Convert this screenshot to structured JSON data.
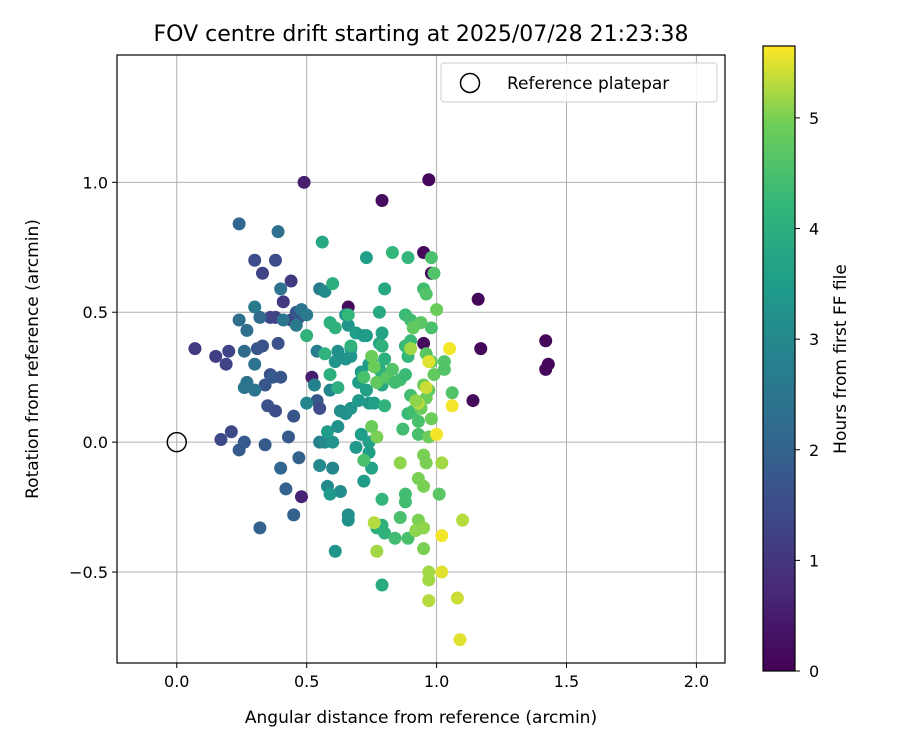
{
  "chart_data": {
    "type": "scatter",
    "title": "FOV centre drift starting at 2025/07/28 21:23:38",
    "xlabel": "Angular distance from reference (arcmin)",
    "ylabel": "Rotation from reference (arcmin)",
    "xlim": [
      -0.23,
      2.11
    ],
    "ylim": [
      -0.85,
      1.49
    ],
    "x_ticks": [
      0.0,
      0.5,
      1.0,
      1.5,
      2.0
    ],
    "x_tick_labels": [
      "0.0",
      "0.5",
      "1.0",
      "1.5",
      "2.0"
    ],
    "y_ticks": [
      -0.5,
      0.0,
      0.5,
      1.0
    ],
    "y_tick_labels": [
      "−0.5",
      "0.0",
      "0.5",
      "1.0"
    ],
    "grid": true,
    "legend": {
      "placement": "top-right",
      "entries": [
        "Reference platepar"
      ]
    },
    "reference_point": {
      "x": 0.0,
      "y": 0.0,
      "name": "Reference platepar"
    },
    "colorbar": {
      "label": "Hours from first FF file",
      "range": [
        0,
        5.65
      ],
      "ticks": [
        0,
        1,
        2,
        3,
        4,
        5
      ],
      "tick_labels": [
        "0",
        "1",
        "2",
        "3",
        "4",
        "5"
      ],
      "colormap": "viridis"
    },
    "points": [
      [
        0.49,
        1.0,
        0.5
      ],
      [
        0.97,
        1.01,
        0.1
      ],
      [
        0.79,
        0.93,
        0.2
      ],
      [
        0.95,
        0.73,
        0.1
      ],
      [
        0.98,
        0.65,
        0.1
      ],
      [
        1.16,
        0.55,
        0.1
      ],
      [
        0.66,
        0.52,
        0.2
      ],
      [
        1.42,
        0.39,
        0.1
      ],
      [
        1.43,
        0.3,
        0.1
      ],
      [
        1.42,
        0.28,
        0.1
      ],
      [
        1.17,
        0.36,
        0.1
      ],
      [
        0.95,
        0.38,
        0.2
      ],
      [
        1.14,
        0.16,
        0.2
      ],
      [
        0.52,
        0.25,
        0.5
      ],
      [
        0.48,
        -0.21,
        0.6
      ],
      [
        0.07,
        0.36,
        1.1
      ],
      [
        0.15,
        0.33,
        1.2
      ],
      [
        0.2,
        0.35,
        1.3
      ],
      [
        0.19,
        0.3,
        1.3
      ],
      [
        0.17,
        0.01,
        1.4
      ],
      [
        0.21,
        0.04,
        1.4
      ],
      [
        0.44,
        0.62,
        1.1
      ],
      [
        0.41,
        0.54,
        1.0
      ],
      [
        0.38,
        0.48,
        1.2
      ],
      [
        0.33,
        0.65,
        1.3
      ],
      [
        0.3,
        0.7,
        1.5
      ],
      [
        0.38,
        0.7,
        1.5
      ],
      [
        0.36,
        0.48,
        1.3
      ],
      [
        0.44,
        0.47,
        1.3
      ],
      [
        0.47,
        0.48,
        1.6
      ],
      [
        0.46,
        0.5,
        1.7
      ],
      [
        0.39,
        0.38,
        1.6
      ],
      [
        0.33,
        0.37,
        1.6
      ],
      [
        0.31,
        0.36,
        1.7
      ],
      [
        0.36,
        0.26,
        1.6
      ],
      [
        0.34,
        0.22,
        1.7
      ],
      [
        0.37,
        0.25,
        1.8
      ],
      [
        0.4,
        0.25,
        1.7
      ],
      [
        0.35,
        0.14,
        1.6
      ],
      [
        0.38,
        0.12,
        1.5
      ],
      [
        0.45,
        0.1,
        1.7
      ],
      [
        0.54,
        0.16,
        1.7
      ],
      [
        0.55,
        0.13,
        1.5
      ],
      [
        0.34,
        -0.01,
        1.8
      ],
      [
        0.24,
        -0.03,
        1.8
      ],
      [
        0.26,
        0.0,
        1.8
      ],
      [
        0.43,
        0.02,
        1.8
      ],
      [
        0.47,
        -0.06,
        2.0
      ],
      [
        0.32,
        -0.33,
        2.0
      ],
      [
        0.45,
        -0.28,
        2.0
      ],
      [
        0.42,
        -0.18,
        2.0
      ],
      [
        0.4,
        -0.1,
        2.1
      ],
      [
        0.24,
        0.84,
        2.1
      ],
      [
        0.39,
        0.81,
        2.3
      ],
      [
        0.4,
        0.59,
        2.4
      ],
      [
        0.32,
        0.48,
        2.2
      ],
      [
        0.24,
        0.47,
        2.3
      ],
      [
        0.27,
        0.43,
        2.3
      ],
      [
        0.26,
        0.35,
        2.2
      ],
      [
        0.3,
        0.3,
        2.4
      ],
      [
        0.27,
        0.23,
        2.4
      ],
      [
        0.26,
        0.21,
        2.5
      ],
      [
        0.3,
        0.2,
        2.5
      ],
      [
        0.3,
        0.52,
        2.6
      ],
      [
        0.41,
        0.47,
        2.5
      ],
      [
        0.48,
        0.51,
        2.5
      ],
      [
        0.5,
        0.49,
        2.6
      ],
      [
        0.46,
        0.45,
        2.6
      ],
      [
        0.55,
        0.59,
        2.6
      ],
      [
        0.57,
        0.58,
        3.0
      ],
      [
        0.54,
        0.35,
        2.7
      ],
      [
        0.53,
        0.22,
        2.8
      ],
      [
        0.59,
        0.2,
        2.9
      ],
      [
        0.5,
        0.15,
        2.9
      ],
      [
        0.55,
        0.0,
        2.8
      ],
      [
        0.57,
        0.0,
        3.0
      ],
      [
        0.55,
        -0.09,
        3.0
      ],
      [
        0.6,
        -0.1,
        2.9
      ],
      [
        0.58,
        -0.17,
        3.0
      ],
      [
        0.63,
        -0.19,
        3.1
      ],
      [
        0.66,
        -0.28,
        3.1
      ],
      [
        0.66,
        -0.3,
        3.2
      ],
      [
        0.61,
        -0.42,
        3.3
      ],
      [
        0.59,
        -0.2,
        3.4
      ],
      [
        0.6,
        0.0,
        3.3
      ],
      [
        0.58,
        0.04,
        3.5
      ],
      [
        0.62,
        0.06,
        3.2
      ],
      [
        0.63,
        0.12,
        3.1
      ],
      [
        0.65,
        0.11,
        3.2
      ],
      [
        0.67,
        0.13,
        3.3
      ],
      [
        0.7,
        0.16,
        3.4
      ],
      [
        0.61,
        0.31,
        3.3
      ],
      [
        0.62,
        0.35,
        3.2
      ],
      [
        0.65,
        0.32,
        3.3
      ],
      [
        0.67,
        0.36,
        3.4
      ],
      [
        0.67,
        0.33,
        3.3
      ],
      [
        0.66,
        0.45,
        3.3
      ],
      [
        0.65,
        0.49,
        3.3
      ],
      [
        0.69,
        0.42,
        3.5
      ],
      [
        0.72,
        0.41,
        3.3
      ],
      [
        0.73,
        0.41,
        3.5
      ],
      [
        0.74,
        0.3,
        3.4
      ],
      [
        0.75,
        0.31,
        3.6
      ],
      [
        0.7,
        0.23,
        3.5
      ],
      [
        0.71,
        0.27,
        3.5
      ],
      [
        0.73,
        0.2,
        3.6
      ],
      [
        0.74,
        0.15,
        3.4
      ],
      [
        0.76,
        0.15,
        3.6
      ],
      [
        0.71,
        0.03,
        3.5
      ],
      [
        0.72,
        -0.15,
        3.5
      ],
      [
        0.74,
        0.0,
        3.6
      ],
      [
        0.69,
        -0.02,
        3.4
      ],
      [
        0.75,
        -0.1,
        3.7
      ],
      [
        0.74,
        -0.04,
        3.6
      ],
      [
        0.73,
        0.71,
        3.6
      ],
      [
        0.8,
        0.59,
        3.8
      ],
      [
        0.78,
        0.5,
        3.8
      ],
      [
        0.79,
        0.42,
        3.7
      ],
      [
        0.78,
        0.38,
        3.7
      ],
      [
        0.77,
        0.23,
        3.7
      ],
      [
        0.79,
        0.22,
        3.8
      ],
      [
        0.78,
        0.28,
        3.8
      ],
      [
        0.56,
        0.77,
        3.8
      ],
      [
        0.6,
        0.61,
        4.0
      ],
      [
        0.59,
        0.46,
        4.0
      ],
      [
        0.61,
        0.44,
        4.1
      ],
      [
        0.59,
        0.26,
        4.0
      ],
      [
        0.57,
        0.34,
        4.1
      ],
      [
        0.5,
        0.41,
        4.1
      ],
      [
        0.62,
        0.21,
        4.0
      ],
      [
        0.79,
        0.37,
        4.1
      ],
      [
        0.8,
        0.32,
        4.0
      ],
      [
        0.79,
        0.26,
        4.1
      ],
      [
        0.8,
        0.14,
        4.1
      ],
      [
        0.79,
        -0.32,
        4.0
      ],
      [
        0.77,
        -0.33,
        4.0
      ],
      [
        0.79,
        -0.55,
        3.9
      ],
      [
        0.8,
        -0.35,
        4.1
      ],
      [
        0.79,
        -0.22,
        4.2
      ],
      [
        0.83,
        0.73,
        4.2
      ],
      [
        0.89,
        0.71,
        4.2
      ],
      [
        0.88,
        0.49,
        4.3
      ],
      [
        0.9,
        0.47,
        4.4
      ],
      [
        0.9,
        0.39,
        4.3
      ],
      [
        0.88,
        0.37,
        4.3
      ],
      [
        0.89,
        0.33,
        4.2
      ],
      [
        0.86,
        0.24,
        4.4
      ],
      [
        0.88,
        0.26,
        4.3
      ],
      [
        0.9,
        0.18,
        4.4
      ],
      [
        0.89,
        0.11,
        4.3
      ],
      [
        0.91,
        0.12,
        4.4
      ],
      [
        0.87,
        0.05,
        4.4
      ],
      [
        0.93,
        0.08,
        4.5
      ],
      [
        0.93,
        0.03,
        4.5
      ],
      [
        0.88,
        -0.2,
        4.4
      ],
      [
        0.88,
        -0.23,
        4.4
      ],
      [
        0.86,
        -0.29,
        4.5
      ],
      [
        0.84,
        -0.37,
        4.4
      ],
      [
        0.89,
        -0.37,
        4.5
      ],
      [
        0.95,
        0.59,
        4.4
      ],
      [
        0.98,
        0.71,
        4.5
      ],
      [
        0.99,
        0.65,
        4.6
      ],
      [
        0.96,
        0.57,
        4.6
      ],
      [
        0.94,
        0.46,
        4.7
      ],
      [
        0.91,
        0.44,
        4.8
      ],
      [
        0.98,
        0.44,
        4.5
      ],
      [
        0.96,
        0.34,
        4.7
      ],
      [
        0.98,
        0.31,
        4.8
      ],
      [
        0.99,
        0.26,
        4.8
      ],
      [
        0.97,
        0.2,
        4.8
      ],
      [
        0.96,
        0.17,
        4.9
      ],
      [
        0.95,
        0.22,
        4.9
      ],
      [
        0.94,
        0.13,
        4.9
      ],
      [
        0.98,
        0.09,
        4.9
      ],
      [
        0.97,
        0.02,
        4.9
      ],
      [
        0.95,
        -0.05,
        5.0
      ],
      [
        0.96,
        -0.08,
        5.0
      ],
      [
        0.93,
        -0.14,
        5.0
      ],
      [
        0.95,
        -0.17,
        5.0
      ],
      [
        1.01,
        -0.2,
        4.7
      ],
      [
        1.06,
        0.19,
        4.6
      ],
      [
        1.03,
        0.28,
        4.6
      ],
      [
        1.03,
        0.31,
        4.6
      ],
      [
        1.0,
        0.51,
        4.9
      ],
      [
        0.86,
        -0.08,
        5.1
      ],
      [
        0.93,
        -0.3,
        5.0
      ],
      [
        0.92,
        -0.34,
        5.1
      ],
      [
        0.95,
        -0.33,
        5.1
      ],
      [
        0.95,
        -0.41,
        5.0
      ],
      [
        0.97,
        -0.5,
        5.2
      ],
      [
        0.97,
        -0.53,
        5.2
      ],
      [
        0.97,
        -0.61,
        5.3
      ],
      [
        0.77,
        -0.42,
        5.2
      ],
      [
        0.76,
        -0.31,
        5.3
      ],
      [
        1.02,
        -0.08,
        5.2
      ],
      [
        1.1,
        -0.3,
        5.3
      ],
      [
        1.08,
        -0.6,
        5.4
      ],
      [
        1.02,
        -0.5,
        5.5
      ],
      [
        1.02,
        -0.36,
        5.6
      ],
      [
        1.09,
        -0.76,
        5.5
      ],
      [
        1.0,
        0.03,
        5.6
      ],
      [
        1.06,
        0.14,
        5.6
      ],
      [
        1.05,
        0.36,
        5.6
      ],
      [
        0.97,
        0.31,
        5.5
      ],
      [
        0.96,
        0.21,
        5.4
      ],
      [
        0.93,
        0.15,
        5.3
      ],
      [
        0.9,
        0.36,
        5.2
      ],
      [
        0.92,
        0.16,
        5.1
      ],
      [
        0.77,
        0.23,
        4.8
      ],
      [
        0.81,
        0.25,
        4.7
      ],
      [
        0.76,
        0.29,
        4.9
      ],
      [
        0.75,
        0.33,
        4.9
      ],
      [
        0.77,
        0.02,
        5.0
      ],
      [
        0.75,
        0.06,
        4.9
      ],
      [
        0.72,
        -0.07,
        4.5
      ],
      [
        0.84,
        0.23,
        4.4
      ],
      [
        0.83,
        0.28,
        4.6
      ],
      [
        0.72,
        0.25,
        4.5
      ],
      [
        0.67,
        0.37,
        4.1
      ],
      [
        0.66,
        0.49,
        4.2
      ]
    ]
  }
}
